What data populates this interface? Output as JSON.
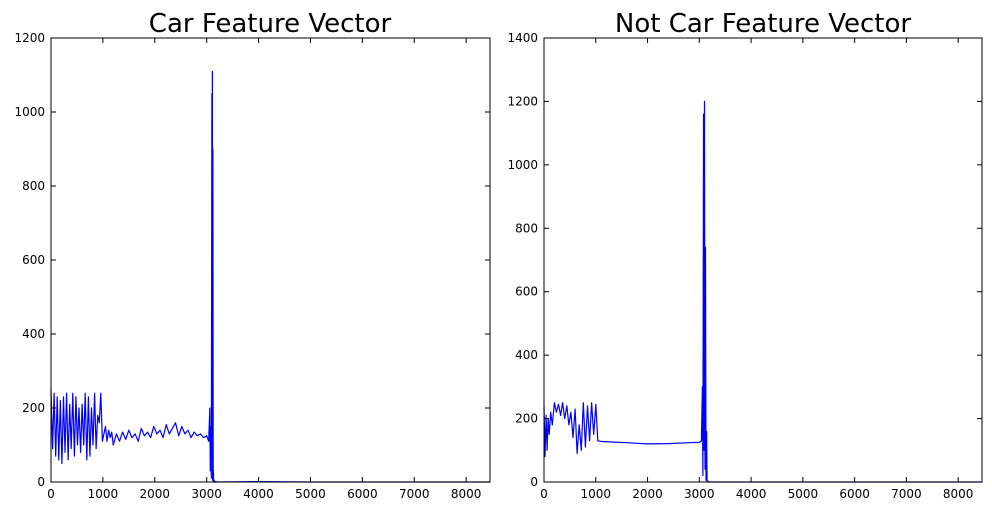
{
  "chart_data": [
    {
      "type": "line",
      "title": "Car Feature Vector",
      "xlabel": "",
      "ylabel": "",
      "xlim": [
        0,
        8460
      ],
      "ylim": [
        0,
        1200
      ],
      "xticks": [
        0,
        1000,
        2000,
        3000,
        4000,
        5000,
        6000,
        7000,
        8000
      ],
      "yticks": [
        0,
        200,
        400,
        600,
        800,
        1000,
        1200
      ],
      "grid": false,
      "series": [
        {
          "color": "#0000ff",
          "x": [
            0,
            30,
            60,
            90,
            120,
            150,
            180,
            210,
            240,
            270,
            300,
            330,
            360,
            390,
            420,
            450,
            480,
            510,
            540,
            570,
            600,
            630,
            660,
            690,
            720,
            750,
            780,
            810,
            840,
            870,
            900,
            930,
            960,
            990,
            1020,
            1050,
            1080,
            1110,
            1140,
            1170,
            1200,
            1260,
            1320,
            1380,
            1440,
            1500,
            1560,
            1620,
            1680,
            1740,
            1800,
            1860,
            1920,
            1980,
            2040,
            2100,
            2160,
            2220,
            2280,
            2340,
            2400,
            2460,
            2520,
            2580,
            2640,
            2700,
            2760,
            2820,
            2880,
            2940,
            3000,
            3040,
            3060,
            3070,
            3080,
            3090,
            3100,
            3105,
            3110,
            3115,
            3120,
            3125,
            3130,
            3135,
            3140,
            3150,
            3160,
            3200,
            4000,
            5000,
            6000,
            7000,
            8000,
            8460
          ],
          "y": [
            250,
            90,
            240,
            70,
            230,
            60,
            220,
            50,
            230,
            80,
            240,
            60,
            210,
            90,
            240,
            70,
            230,
            100,
            200,
            80,
            210,
            100,
            240,
            60,
            230,
            70,
            200,
            100,
            240,
            90,
            180,
            160,
            240,
            110,
            130,
            150,
            110,
            140,
            120,
            135,
            100,
            130,
            110,
            135,
            115,
            140,
            120,
            130,
            110,
            145,
            125,
            135,
            120,
            150,
            130,
            140,
            120,
            155,
            130,
            145,
            160,
            125,
            150,
            130,
            140,
            120,
            135,
            125,
            130,
            120,
            125,
            110,
            200,
            30,
            150,
            10,
            1050,
            100,
            1110,
            5,
            900,
            0,
            30,
            0,
            5,
            0,
            2,
            0,
            1,
            0,
            0,
            0,
            0,
            0
          ]
        }
      ]
    },
    {
      "type": "line",
      "title": "Not Car Feature Vector",
      "xlabel": "",
      "ylabel": "",
      "xlim": [
        0,
        8460
      ],
      "ylim": [
        0,
        1400
      ],
      "xticks": [
        0,
        1000,
        2000,
        3000,
        4000,
        5000,
        6000,
        7000,
        8000
      ],
      "yticks": [
        0,
        200,
        400,
        600,
        800,
        1000,
        1200,
        1400
      ],
      "grid": false,
      "series": [
        {
          "color": "#0000ff",
          "x": [
            0,
            20,
            40,
            60,
            80,
            100,
            130,
            160,
            200,
            240,
            280,
            320,
            360,
            400,
            440,
            480,
            520,
            560,
            600,
            640,
            680,
            720,
            760,
            800,
            840,
            880,
            920,
            960,
            1000,
            1040,
            1100,
            1300,
            1600,
            2000,
            2400,
            2800,
            3000,
            3040,
            3060,
            3070,
            3080,
            3090,
            3100,
            3110,
            3120,
            3130,
            3140,
            3150,
            3160,
            3200,
            4000,
            5000,
            6000,
            7000,
            8000,
            8460
          ],
          "y": [
            240,
            80,
            210,
            100,
            200,
            150,
            220,
            180,
            250,
            220,
            245,
            210,
            250,
            200,
            240,
            180,
            220,
            140,
            230,
            90,
            180,
            100,
            250,
            110,
            240,
            130,
            250,
            150,
            245,
            130,
            128,
            126,
            124,
            120,
            121,
            124,
            125,
            130,
            300,
            20,
            1160,
            100,
            1200,
            40,
            740,
            5,
            160,
            0,
            3,
            0,
            0,
            0,
            0,
            0,
            0,
            0
          ]
        }
      ]
    }
  ]
}
